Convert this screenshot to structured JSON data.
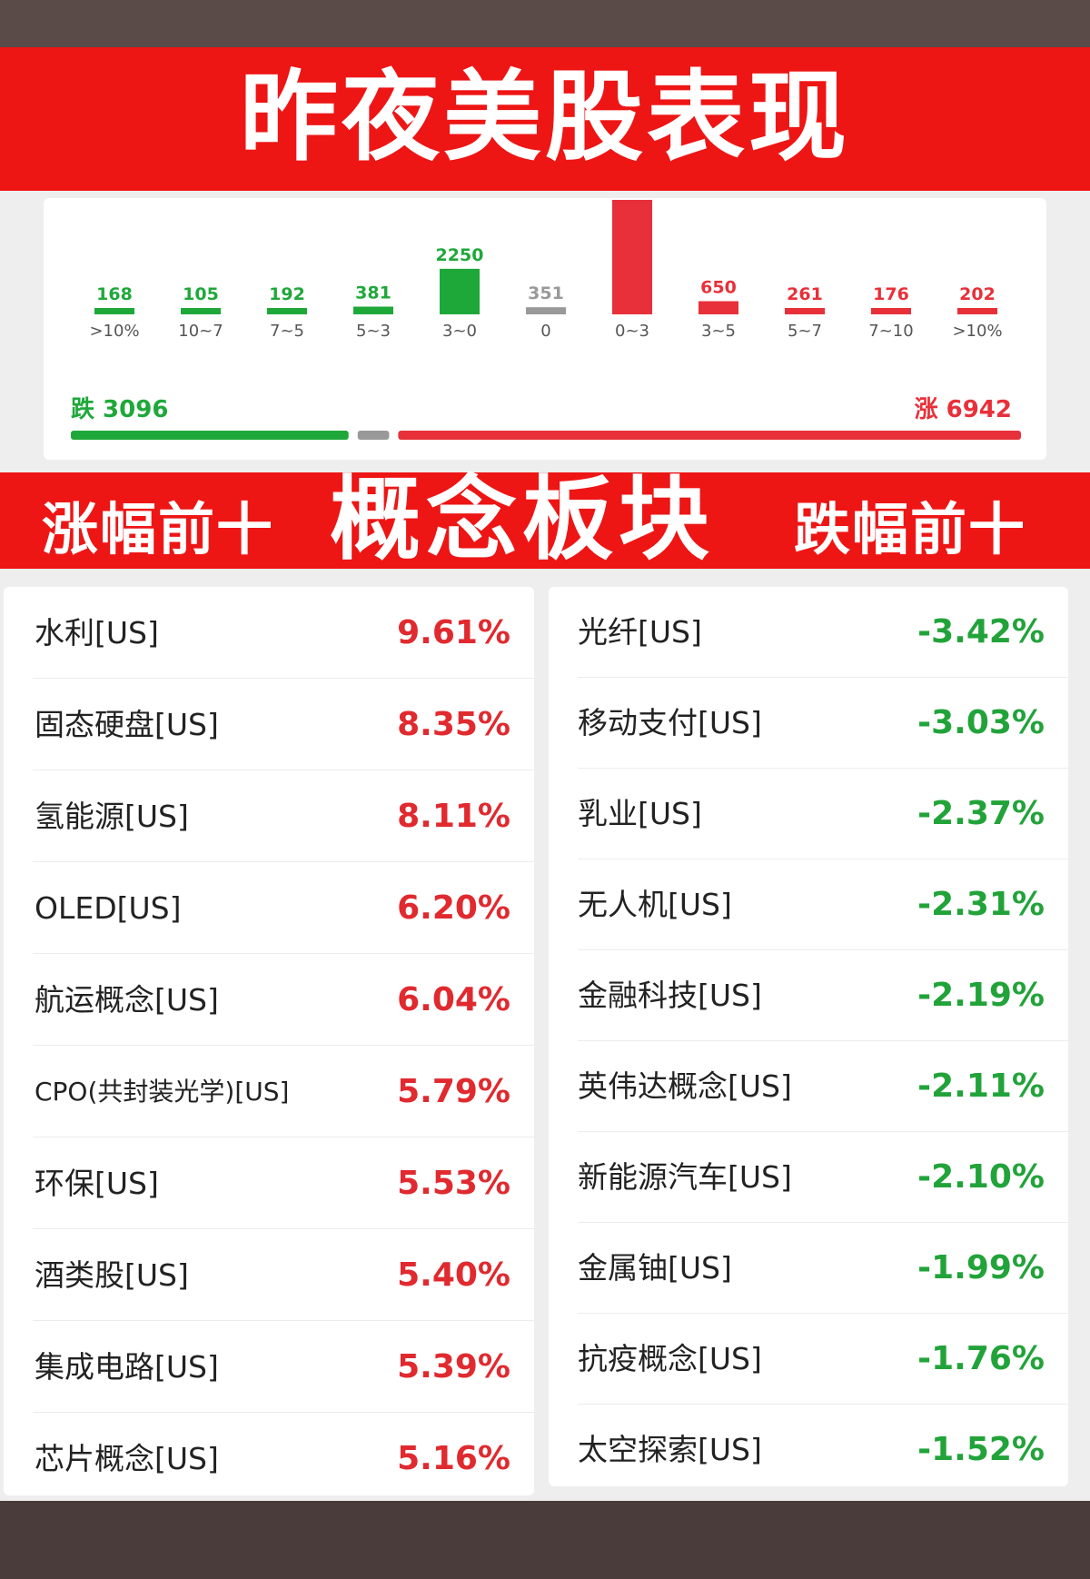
{
  "title": "昨夜美股表现",
  "colors": {
    "up": "#e8303a",
    "down": "#1fa83a",
    "flat": "#999999",
    "banner": "#ee1515"
  },
  "chart_data": {
    "type": "bar",
    "categories": [
      ">10%",
      "10~7",
      "7~5",
      "5~3",
      "3~0",
      "0",
      "0~3",
      "3~5",
      "5~7",
      "7~10",
      ">10%"
    ],
    "values": [
      168,
      105,
      192,
      381,
      2250,
      351,
      5653,
      650,
      261,
      176,
      202
    ],
    "direction": [
      "down",
      "down",
      "down",
      "down",
      "down",
      "flat",
      "up",
      "up",
      "up",
      "up",
      "up"
    ],
    "ylim": [
      0,
      5653
    ],
    "fall_label": "跌",
    "fall_total": 3096,
    "rise_label": "涨",
    "rise_total": 6942
  },
  "concept": {
    "left_heading": "涨幅前十",
    "center_heading": "概念板块",
    "right_heading": "跌幅前十",
    "gainers": [
      {
        "name": "水利[US]",
        "change": "9.61%"
      },
      {
        "name": "固态硬盘[US]",
        "change": "8.35%"
      },
      {
        "name": "氢能源[US]",
        "change": "8.11%"
      },
      {
        "name": "OLED[US]",
        "change": "6.20%"
      },
      {
        "name": "航运概念[US]",
        "change": "6.04%"
      },
      {
        "name": "CPO(共封装光学)[US]",
        "change": "5.79%"
      },
      {
        "name": "环保[US]",
        "change": "5.53%"
      },
      {
        "name": "酒类股[US]",
        "change": "5.40%"
      },
      {
        "name": "集成电路[US]",
        "change": "5.39%"
      },
      {
        "name": "芯片概念[US]",
        "change": "5.16%"
      }
    ],
    "losers": [
      {
        "name": "光纤[US]",
        "change": "-3.42%"
      },
      {
        "name": "移动支付[US]",
        "change": "-3.03%"
      },
      {
        "name": "乳业[US]",
        "change": "-2.37%"
      },
      {
        "name": "无人机[US]",
        "change": "-2.31%"
      },
      {
        "name": "金融科技[US]",
        "change": "-2.19%"
      },
      {
        "name": "英伟达概念[US]",
        "change": "-2.11%"
      },
      {
        "name": "新能源汽车[US]",
        "change": "-2.10%"
      },
      {
        "name": "金属铀[US]",
        "change": "-1.99%"
      },
      {
        "name": "抗疫概念[US]",
        "change": "-1.76%"
      },
      {
        "name": "太空探索[US]",
        "change": "-1.52%"
      }
    ]
  }
}
